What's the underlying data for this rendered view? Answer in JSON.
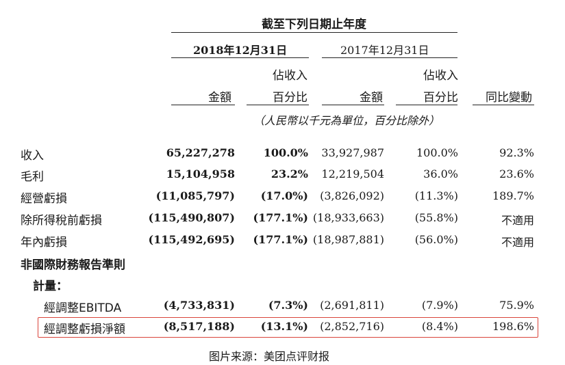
{
  "header": {
    "period_title": "截至下列日期止年度",
    "year_2018": "2018年12月31日",
    "year_2017": "2017年12月31日",
    "col_amount": "金額",
    "col_pct_line1": "佔收入",
    "col_pct_line2": "百分比",
    "col_yoy": "同比變動",
    "unit_note": "（人民幣以千元為單位，百分比除外）"
  },
  "rows": [
    {
      "label": "收入",
      "a2018": "65,227,278",
      "p2018": "100.0%",
      "a2017": "33,927,987",
      "p2017": "100.0%",
      "yoy": "92.3%"
    },
    {
      "label": "毛利",
      "a2018": "15,104,958",
      "p2018": "23.2%",
      "a2017": "12,219,504",
      "p2017": "36.0%",
      "yoy": "23.6%"
    },
    {
      "label": "經營虧損",
      "a2018": "(11,085,797)",
      "p2018": "(17.0%)",
      "a2017": "(3,826,092)",
      "p2017": "(11.3%)",
      "yoy": "189.7%"
    },
    {
      "label": "除所得稅前虧損",
      "a2018": "(115,490,807)",
      "p2018": "(177.1%)",
      "a2017": "(18,933,663)",
      "p2017": "(55.8%)",
      "yoy": "不適用"
    },
    {
      "label": "年內虧損",
      "a2018": "(115,492,695)",
      "p2018": "(177.1%)",
      "a2017": "(18,987,881)",
      "p2017": "(56.0%)",
      "yoy": "不適用"
    }
  ],
  "non_ifrs": {
    "heading": "非國際財務報告準則",
    "subheading": "計量：",
    "rows": [
      {
        "label": "經調整EBITDA",
        "a2018": "(4,733,831)",
        "p2018": "(7.3%)",
        "a2017": "(2,691,811)",
        "p2017": "(7.9%)",
        "yoy": "75.9%"
      },
      {
        "label": "經調整虧損淨額",
        "a2018": "(8,517,188)",
        "p2018": "(13.1%)",
        "a2017": "(2,852,716)",
        "p2017": "(8.4%)",
        "yoy": "198.6%"
      }
    ]
  },
  "caption": "图片来源：美团点评财报",
  "colors": {
    "highlight_border": "#d9433a",
    "text": "#1a1a1a"
  }
}
